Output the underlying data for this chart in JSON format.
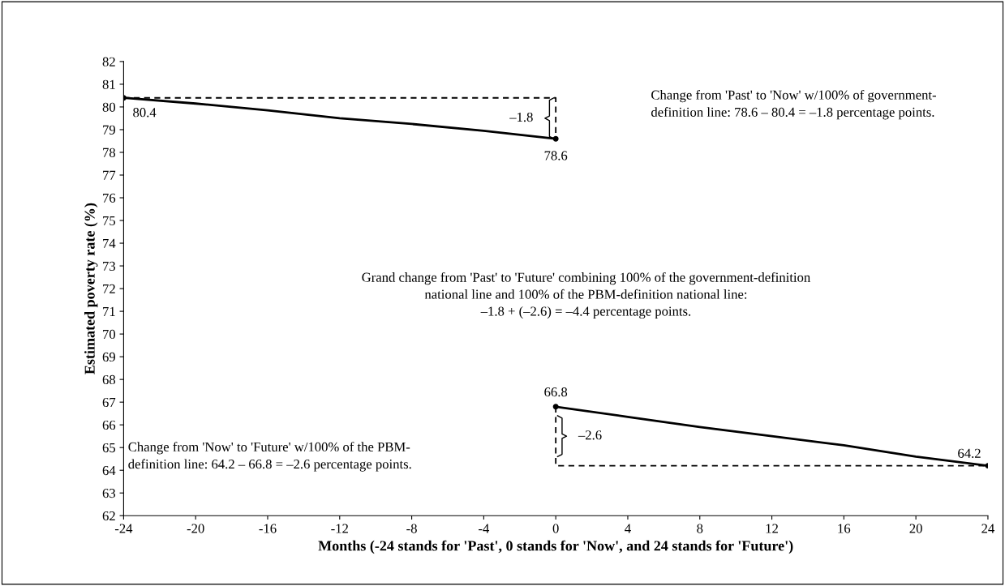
{
  "chart_data": {
    "type": "line",
    "xlabel": "Months (-24 stands for 'Past', 0 stands for 'Now', and 24 stands for 'Future')",
    "ylabel": "Estimated poverty rate (%)",
    "series": [
      {
        "color": "#000000",
        "line_style": "solid",
        "x": [
          -24,
          -20,
          -16,
          -12,
          -8,
          -4,
          0
        ],
        "values": [
          80.4,
          80.15,
          79.85,
          79.5,
          79.25,
          78.95,
          78.6
        ]
      },
      {
        "color": "#000000",
        "line_style": "solid",
        "x": [
          0,
          4,
          8,
          12,
          16,
          20,
          24
        ],
        "values": [
          66.8,
          66.35,
          65.9,
          65.5,
          65.1,
          64.6,
          64.2
        ]
      },
      {
        "color": "#000000",
        "line_style": "dashed",
        "x": [
          -24,
          0,
          0
        ],
        "values": [
          80.4,
          80.4,
          78.6
        ]
      },
      {
        "color": "#000000",
        "line_style": "dashed",
        "x": [
          0,
          0,
          24
        ],
        "values": [
          66.8,
          64.2,
          64.2
        ]
      }
    ],
    "xlim": [
      -24,
      24
    ],
    "xticks": [
      -24,
      -20,
      -16,
      -12,
      -8,
      -4,
      0,
      4,
      8,
      12,
      16,
      20,
      24
    ],
    "ylim": [
      62,
      82
    ],
    "yticks": [
      62,
      63,
      64,
      65,
      66,
      67,
      68,
      69,
      70,
      71,
      72,
      73,
      74,
      75,
      76,
      77,
      78,
      79,
      80,
      81,
      82
    ],
    "grid": false,
    "legend": false,
    "marker": "none",
    "annotations": [
      {
        "text": "80.4",
        "x": -24,
        "y": 80.4
      },
      {
        "text": "78.6",
        "x": 0,
        "y": 78.6
      },
      {
        "text": "66.8",
        "x": 0,
        "y": 66.8
      },
      {
        "text": "64.2",
        "x": 24,
        "y": 64.2
      },
      {
        "text": "–1.8",
        "x": 0,
        "y": 79.5
      },
      {
        "text": "–2.6",
        "x": 0,
        "y": 65.5
      },
      "Change from 'Past' to 'Now' w/100% of government-\ndefinition line: 78.6 – 80.4 = –1.8 percentage points.",
      "Grand change from 'Past' to 'Future' combining 100% of the government-definition\nnational line and 100% of the PBM-definition national line:\n–1.8 + (–2.6) = –4.4 percentage points.",
      "Change from 'Now' to 'Future' w/100% of the PBM-\ndefinition line: 64.2 – 66.8 = –2.6 percentage points."
    ]
  }
}
